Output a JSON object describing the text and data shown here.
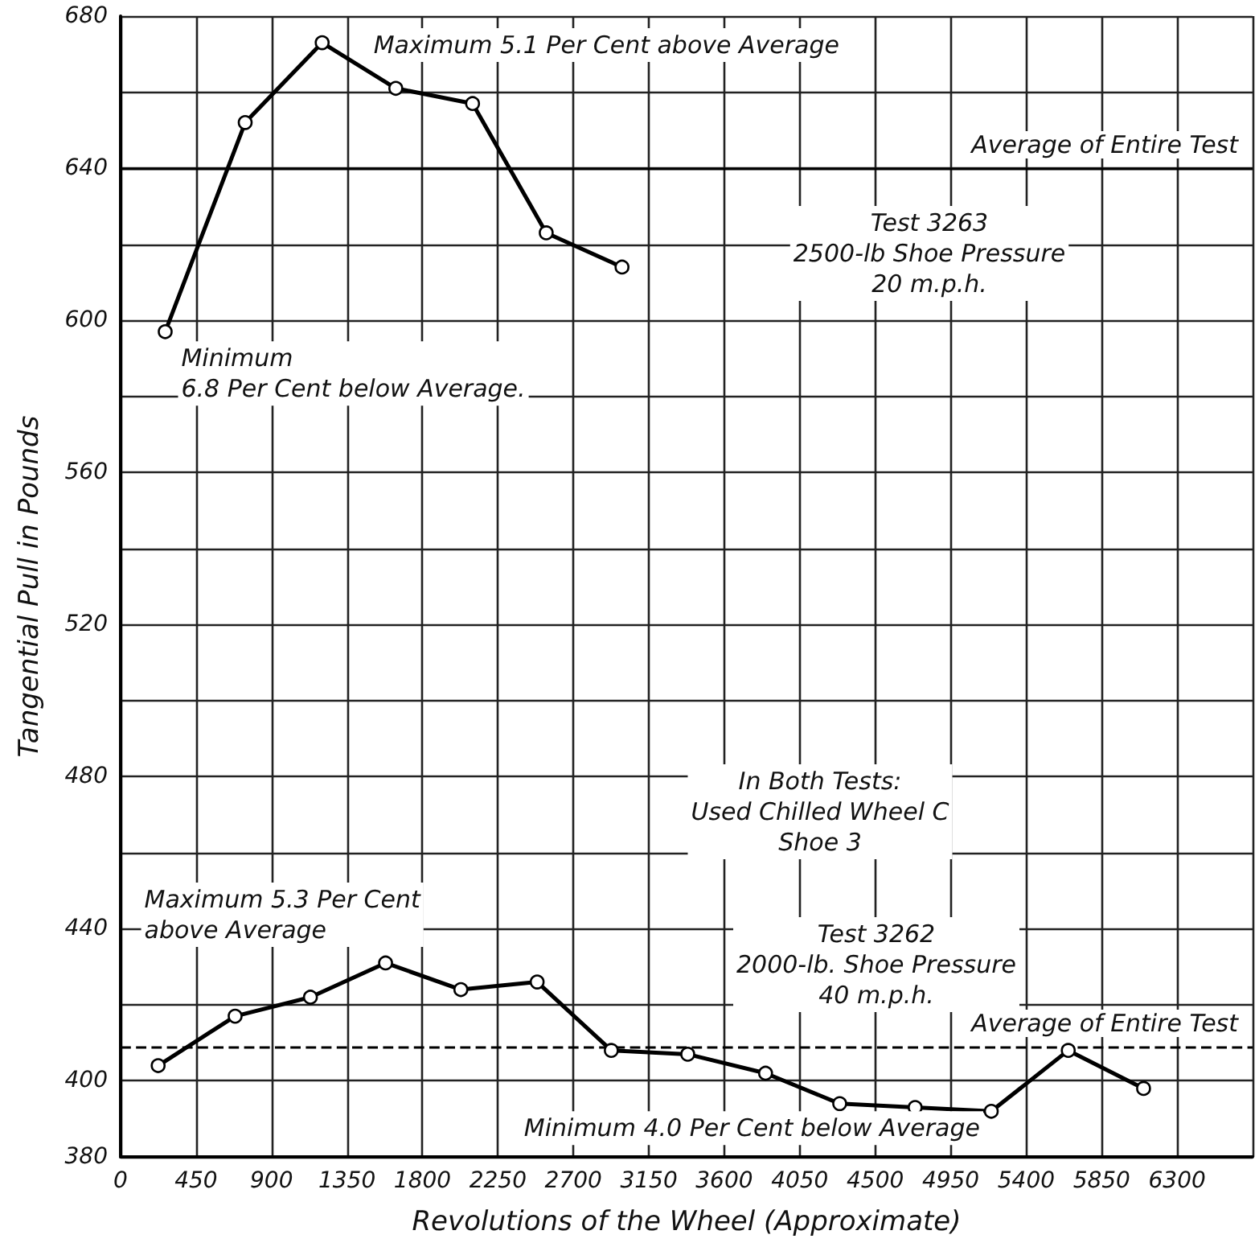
{
  "chart_data": {
    "type": "line",
    "xlabel": "Revolutions of the Wheel (Approximate)",
    "ylabel": "Tangential Pull in Pounds",
    "xlim": [
      0,
      6750
    ],
    "xticks": [
      0,
      450,
      900,
      1350,
      1800,
      2250,
      2700,
      3150,
      3600,
      4050,
      4500,
      4950,
      5400,
      5850,
      6300
    ],
    "ylim": [
      380,
      680
    ],
    "yticks": [
      380,
      400,
      {
        "value": 420,
        "label": null
      },
      440,
      {
        "value": 460,
        "label": null
      },
      480,
      {
        "value": 500,
        "label": null
      },
      520,
      {
        "value": 540,
        "label": null
      },
      560,
      {
        "value": 580,
        "label": null
      },
      600,
      {
        "value": 620,
        "label": null
      },
      640,
      {
        "value": 660,
        "label": null
      },
      680
    ],
    "grid": true,
    "marker": "circle",
    "series": [
      {
        "color": "#000000",
        "x": [
          266,
          743,
          1202,
          1641,
          2099,
          2538,
          2990
        ],
        "values": [
          597,
          652,
          673,
          661,
          657,
          623,
          614
        ]
      },
      {
        "color": "#000000",
        "x": [
          224,
          683,
          1132,
          1580,
          2029,
          2484,
          2926,
          3382,
          3846,
          4288,
          4738,
          5192,
          5651,
          6100
        ],
        "values": [
          404,
          417,
          422,
          431,
          424,
          426,
          408,
          407,
          402,
          394,
          393,
          392,
          408,
          398
        ]
      }
    ],
    "ref_lines": [
      {
        "axis": "y",
        "value": 640,
        "label": "Average of Entire Test",
        "line_style": "solid",
        "color": "#000000"
      },
      {
        "axis": "y",
        "value": 409,
        "label": "Average of Entire Test",
        "line_style": "dashed",
        "color": "#000000"
      }
    ],
    "annotations": [
      {
        "text": "Maximum 5.1 Per Cent above Average",
        "x": 1202,
        "y": 673
      },
      {
        "text": "Minimum\n6.8 Per Cent below Average.",
        "x": 266,
        "y": 597
      },
      "Test 3263\n2500-lb Shoe Pressure\n20 m.p.h.",
      "In Both Tests:\nUsed Chilled Wheel C\nShoe 3",
      "Test 3262\n2000-lb. Shoe Pressure\n40 m.p.h.",
      {
        "text": "Maximum 5.3 Per Cent\nabove Average",
        "x": 1580,
        "y": 431
      },
      {
        "text": "Minimum 4.0 Per Cent below Average",
        "x": 5192,
        "y": 392
      }
    ]
  }
}
